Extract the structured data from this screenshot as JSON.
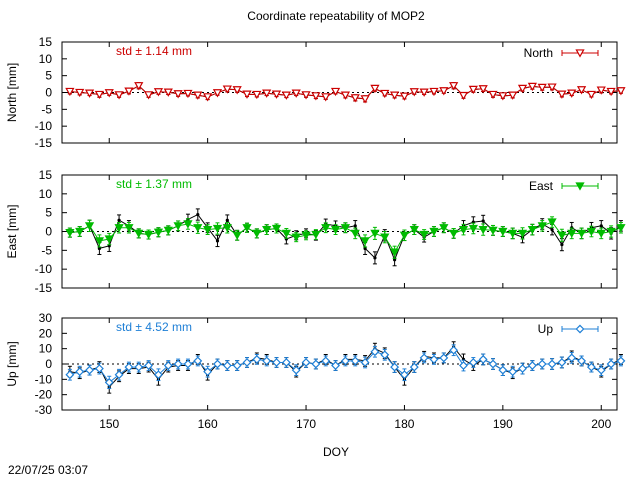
{
  "title": "Coordinate repeatability of MOP2",
  "timestamp": "22/07/25 03:07",
  "chart_data": [
    {
      "type": "line",
      "panel": "north",
      "ylabel": "North [mm]",
      "ylim": [
        -15,
        15
      ],
      "yticks": [
        -15,
        -10,
        -5,
        0,
        5,
        10,
        15
      ],
      "std_text": "std ± 1.14 mm",
      "std_color": "#cc0000",
      "legend": "North",
      "legend_position": "top-right",
      "marker": "triangle-down-open",
      "series": [
        {
          "name": "raw",
          "color": "#000000",
          "x": [
            146,
            147,
            148,
            149,
            150,
            151,
            152,
            153,
            154,
            155,
            156,
            157,
            158,
            159,
            160,
            161,
            162,
            163,
            164,
            165,
            166,
            167,
            168,
            169,
            170,
            171,
            172,
            173,
            174,
            175,
            176,
            177,
            178,
            179,
            180,
            181,
            182,
            183,
            184,
            185,
            186,
            187,
            188,
            189,
            190,
            191,
            192,
            193,
            194,
            195,
            196,
            197,
            198,
            199,
            200,
            201,
            202
          ],
          "values": [
            0.3,
            0.0,
            -0.2,
            -0.6,
            -0.1,
            -0.7,
            0.4,
            2.0,
            -0.7,
            0.2,
            0.1,
            -0.4,
            -0.3,
            -0.8,
            -1.3,
            -0.1,
            1.0,
            0.8,
            -0.5,
            -0.6,
            -0.2,
            -0.5,
            -0.8,
            -0.2,
            -0.7,
            -1.0,
            -1.3,
            0.3,
            -0.8,
            -1.6,
            -1.9,
            1.2,
            -0.3,
            -0.8,
            -1.1,
            0.2,
            0.1,
            0.3,
            0.5,
            2.0,
            -0.9,
            0.9,
            1.1,
            -0.6,
            -1.0,
            -0.8,
            1.2,
            1.8,
            1.5,
            1.6,
            -0.5,
            -0.2,
            0.8,
            -0.6,
            0.7,
            0.3,
            0.5
          ],
          "err": [
            0.7,
            0.7,
            0.7,
            0.8,
            0.7,
            0.7,
            0.8,
            0.9,
            0.7,
            0.7,
            0.7,
            0.7,
            0.7,
            0.8,
            0.8,
            0.7,
            0.8,
            0.7,
            0.7,
            0.7,
            0.7,
            0.7,
            0.7,
            0.7,
            0.7,
            0.8,
            0.7,
            0.7,
            0.8,
            0.9,
            0.9,
            0.8,
            0.7,
            0.8,
            0.8,
            0.7,
            0.7,
            0.7,
            0.7,
            0.9,
            0.8,
            0.8,
            0.8,
            0.8,
            0.7,
            0.8,
            0.8,
            0.8,
            0.8,
            0.8,
            0.8,
            0.7,
            0.8,
            0.7,
            0.8,
            0.7,
            0.7
          ]
        },
        {
          "name": "North",
          "color": "#cc0000",
          "x": [
            146,
            147,
            148,
            149,
            150,
            151,
            152,
            153,
            154,
            155,
            156,
            157,
            158,
            159,
            160,
            161,
            162,
            163,
            164,
            165,
            166,
            167,
            168,
            169,
            170,
            171,
            172,
            173,
            174,
            175,
            176,
            177,
            178,
            179,
            180,
            181,
            182,
            183,
            184,
            185,
            186,
            187,
            188,
            189,
            190,
            191,
            192,
            193,
            194,
            195,
            196,
            197,
            198,
            199,
            200,
            201,
            202
          ],
          "values": [
            0.3,
            0.0,
            -0.2,
            -0.6,
            -0.1,
            -0.7,
            0.4,
            2.0,
            -0.7,
            0.2,
            0.1,
            -0.4,
            -0.3,
            -0.8,
            -1.3,
            -0.1,
            1.0,
            0.8,
            -0.5,
            -0.6,
            -0.2,
            -0.5,
            -0.8,
            -0.2,
            -0.7,
            -1.0,
            -1.3,
            0.3,
            -0.8,
            -1.6,
            -1.9,
            1.2,
            -0.3,
            -0.8,
            -1.1,
            0.2,
            0.1,
            0.3,
            0.5,
            2.0,
            -0.9,
            0.9,
            1.1,
            -0.6,
            -1.0,
            -0.8,
            1.2,
            1.8,
            1.5,
            1.6,
            -0.5,
            -0.2,
            0.8,
            -0.6,
            0.7,
            0.3,
            0.5
          ],
          "err": [
            0.7,
            0.7,
            0.7,
            0.8,
            0.7,
            0.7,
            0.8,
            0.9,
            0.7,
            0.7,
            0.7,
            0.7,
            0.7,
            0.8,
            0.8,
            0.7,
            0.8,
            0.7,
            0.7,
            0.7,
            0.7,
            0.7,
            0.7,
            0.7,
            0.7,
            0.8,
            0.7,
            0.7,
            0.8,
            0.9,
            0.9,
            0.8,
            0.7,
            0.8,
            0.8,
            0.7,
            0.7,
            0.7,
            0.7,
            0.9,
            0.8,
            0.8,
            0.8,
            0.8,
            0.7,
            0.8,
            0.8,
            0.8,
            0.8,
            0.8,
            0.8,
            0.7,
            0.8,
            0.7,
            0.8,
            0.7,
            0.7
          ]
        }
      ]
    },
    {
      "type": "line",
      "panel": "east",
      "ylabel": "East [mm]",
      "ylim": [
        -15,
        15
      ],
      "yticks": [
        -15,
        -10,
        -5,
        0,
        5,
        10,
        15
      ],
      "std_text": "std ± 1.37 mm",
      "std_color": "#00bb00",
      "legend": "East",
      "legend_position": "top-right",
      "marker": "triangle-down-filled",
      "series": [
        {
          "name": "raw",
          "color": "#000000",
          "x": [
            146,
            147,
            148,
            149,
            150,
            151,
            152,
            153,
            154,
            155,
            156,
            157,
            158,
            159,
            160,
            161,
            162,
            163,
            164,
            165,
            166,
            167,
            168,
            169,
            170,
            171,
            172,
            173,
            174,
            175,
            176,
            177,
            178,
            179,
            180,
            181,
            182,
            183,
            184,
            185,
            186,
            187,
            188,
            189,
            190,
            191,
            192,
            193,
            194,
            195,
            196,
            197,
            198,
            199,
            200,
            201,
            202
          ],
          "values": [
            -0.3,
            0.0,
            1.5,
            -4.5,
            -3.8,
            3.0,
            1.5,
            -0.5,
            -0.8,
            -0.2,
            0.3,
            1.5,
            3.2,
            4.5,
            1.0,
            -2.5,
            3.0,
            -1.0,
            1.0,
            -0.5,
            0.5,
            0.8,
            -2.0,
            -1.0,
            -0.5,
            -1.0,
            2.0,
            1.5,
            1.0,
            1.5,
            -4.5,
            -7.0,
            -1.0,
            -7.5,
            -1.0,
            0.5,
            -1.5,
            0.0,
            1.0,
            -0.5,
            1.5,
            2.5,
            2.8,
            0.3,
            0.0,
            -0.5,
            -1.5,
            0.5,
            2.0,
            0.5,
            -3.5,
            1.0,
            -0.5,
            1.0,
            1.5,
            -0.5,
            1.5
          ],
          "err": [
            1.2,
            1.3,
            1.5,
            1.6,
            1.5,
            1.4,
            1.4,
            1.2,
            1.2,
            1.2,
            1.2,
            1.3,
            1.4,
            1.5,
            1.3,
            1.5,
            1.4,
            1.3,
            1.2,
            1.2,
            1.3,
            1.2,
            1.3,
            1.2,
            1.2,
            1.3,
            1.3,
            1.3,
            1.3,
            1.4,
            1.6,
            1.6,
            1.5,
            1.6,
            1.4,
            1.3,
            1.3,
            1.3,
            1.3,
            1.3,
            1.4,
            1.4,
            1.5,
            1.3,
            1.3,
            1.4,
            1.5,
            1.4,
            1.4,
            1.4,
            1.6,
            1.4,
            1.4,
            1.4,
            1.4,
            1.5,
            1.4
          ]
        },
        {
          "name": "East",
          "color": "#00bb00",
          "x": [
            146,
            147,
            148,
            149,
            150,
            151,
            152,
            153,
            154,
            155,
            156,
            157,
            158,
            159,
            160,
            161,
            162,
            163,
            164,
            165,
            166,
            167,
            168,
            169,
            170,
            171,
            172,
            173,
            174,
            175,
            176,
            177,
            178,
            179,
            180,
            181,
            182,
            183,
            184,
            185,
            186,
            187,
            188,
            189,
            190,
            191,
            192,
            193,
            194,
            195,
            196,
            197,
            198,
            199,
            200,
            201,
            202
          ],
          "values": [
            -0.3,
            0.0,
            1.5,
            -2.5,
            -2.0,
            1.0,
            1.0,
            -0.5,
            -0.8,
            -0.2,
            0.3,
            1.5,
            2.0,
            1.0,
            0.5,
            0.8,
            1.0,
            -1.0,
            1.0,
            -0.5,
            0.5,
            0.8,
            -0.5,
            -1.5,
            -1.0,
            -0.8,
            1.0,
            0.5,
            1.0,
            -0.5,
            -2.5,
            -0.5,
            -1.5,
            -5.5,
            -1.0,
            0.5,
            -0.8,
            0.0,
            1.0,
            -0.5,
            0.5,
            0.8,
            0.5,
            0.3,
            0.0,
            -0.5,
            -0.5,
            0.5,
            1.5,
            2.5,
            -1.0,
            -0.5,
            -0.5,
            0.0,
            -0.5,
            0.0,
            1.0
          ],
          "err": [
            1.2,
            1.3,
            1.5,
            1.6,
            1.5,
            1.4,
            1.4,
            1.2,
            1.2,
            1.2,
            1.2,
            1.3,
            1.4,
            1.5,
            1.3,
            1.5,
            1.4,
            1.3,
            1.2,
            1.2,
            1.3,
            1.2,
            1.3,
            1.2,
            1.2,
            1.3,
            1.3,
            1.3,
            1.3,
            1.4,
            1.6,
            1.6,
            1.5,
            1.6,
            1.4,
            1.3,
            1.3,
            1.3,
            1.3,
            1.3,
            1.4,
            1.4,
            1.5,
            1.3,
            1.3,
            1.4,
            1.5,
            1.4,
            1.4,
            1.4,
            1.6,
            1.4,
            1.4,
            1.4,
            1.4,
            1.5,
            1.4
          ]
        }
      ]
    },
    {
      "type": "line",
      "panel": "up",
      "ylabel": "Up [mm]",
      "ylim": [
        -30,
        30
      ],
      "yticks": [
        -30,
        -20,
        -10,
        0,
        10,
        20,
        30
      ],
      "std_text": "std ± 4.52 mm",
      "std_color": "#1e7fd6",
      "legend": "Up",
      "legend_position": "top-right",
      "marker": "diamond-open",
      "series": [
        {
          "name": "raw",
          "color": "#000000",
          "x": [
            146,
            147,
            148,
            149,
            150,
            151,
            152,
            153,
            154,
            155,
            156,
            157,
            158,
            159,
            160,
            161,
            162,
            163,
            164,
            165,
            166,
            167,
            168,
            169,
            170,
            171,
            172,
            173,
            174,
            175,
            176,
            177,
            178,
            179,
            180,
            181,
            182,
            183,
            184,
            185,
            186,
            187,
            188,
            189,
            190,
            191,
            192,
            193,
            194,
            195,
            196,
            197,
            198,
            199,
            200,
            201,
            202
          ],
          "values": [
            -5,
            -6,
            -4,
            -2,
            -15,
            -8,
            -3,
            -3,
            -2,
            -10,
            -2,
            -1,
            -1,
            3,
            -7,
            0,
            -1,
            -1,
            1,
            4,
            3,
            1,
            1,
            -5,
            1,
            0,
            3,
            -1,
            3,
            3,
            2,
            10,
            7,
            -2,
            -10,
            -2,
            5,
            4,
            4,
            11,
            3,
            -1,
            3,
            0,
            -4,
            -6,
            -3,
            -1,
            0,
            0,
            1,
            5,
            2,
            -2,
            -5,
            0,
            3
          ],
          "err": [
            3.5,
            3.5,
            3.2,
            3.5,
            4.0,
            3.5,
            3.2,
            3.2,
            3.2,
            3.8,
            3.2,
            3.2,
            3.2,
            3.2,
            3.5,
            3.2,
            3.2,
            3.2,
            3.2,
            3.2,
            3.2,
            3.2,
            3.2,
            3.5,
            3.2,
            3.2,
            3.2,
            3.2,
            3.2,
            3.2,
            3.5,
            3.5,
            3.5,
            3.5,
            3.8,
            3.5,
            3.2,
            3.2,
            3.2,
            3.5,
            3.5,
            3.2,
            3.5,
            3.5,
            3.5,
            3.5,
            3.5,
            3.2,
            3.2,
            3.5,
            3.5,
            3.5,
            3.2,
            3.2,
            3.5,
            3.2,
            3.2
          ]
        },
        {
          "name": "Up",
          "color": "#1e7fd6",
          "x": [
            146,
            147,
            148,
            149,
            150,
            151,
            152,
            153,
            154,
            155,
            156,
            157,
            158,
            159,
            160,
            161,
            162,
            163,
            164,
            165,
            166,
            167,
            168,
            169,
            170,
            171,
            172,
            173,
            174,
            175,
            176,
            177,
            178,
            179,
            180,
            181,
            182,
            183,
            184,
            185,
            186,
            187,
            188,
            189,
            190,
            191,
            192,
            193,
            194,
            195,
            196,
            197,
            198,
            199,
            200,
            201,
            202
          ],
          "values": [
            -7,
            -5,
            -4,
            -3,
            -12,
            -7,
            -2,
            -2,
            -1,
            -7,
            -1,
            0,
            0,
            2,
            -5,
            0,
            -1,
            -1,
            1,
            3,
            2,
            1,
            1,
            -4,
            1,
            0,
            2,
            -1,
            2,
            2,
            1,
            8,
            6,
            -2,
            -7,
            -2,
            4,
            3,
            4,
            9,
            -1,
            1,
            3,
            0,
            -4,
            -5,
            -3,
            -1,
            0,
            0,
            1,
            4,
            2,
            -2,
            -4,
            0,
            2
          ],
          "err": [
            3.5,
            3.5,
            3.2,
            3.5,
            4.0,
            3.5,
            3.2,
            3.2,
            3.2,
            3.8,
            3.2,
            3.2,
            3.2,
            3.2,
            3.5,
            3.2,
            3.2,
            3.2,
            3.2,
            3.2,
            3.2,
            3.2,
            3.2,
            3.5,
            3.2,
            3.2,
            3.2,
            3.2,
            3.2,
            3.2,
            3.5,
            3.5,
            3.5,
            3.5,
            3.8,
            3.5,
            3.2,
            3.2,
            3.2,
            3.5,
            3.5,
            3.2,
            3.5,
            3.5,
            3.5,
            3.5,
            3.5,
            3.2,
            3.2,
            3.5,
            3.5,
            3.5,
            3.2,
            3.2,
            3.5,
            3.2,
            3.2
          ]
        }
      ]
    }
  ],
  "xaxis": {
    "label": "DOY",
    "xlim": [
      145.2,
      201.6
    ],
    "ticks": [
      150,
      160,
      170,
      180,
      190,
      200
    ]
  }
}
